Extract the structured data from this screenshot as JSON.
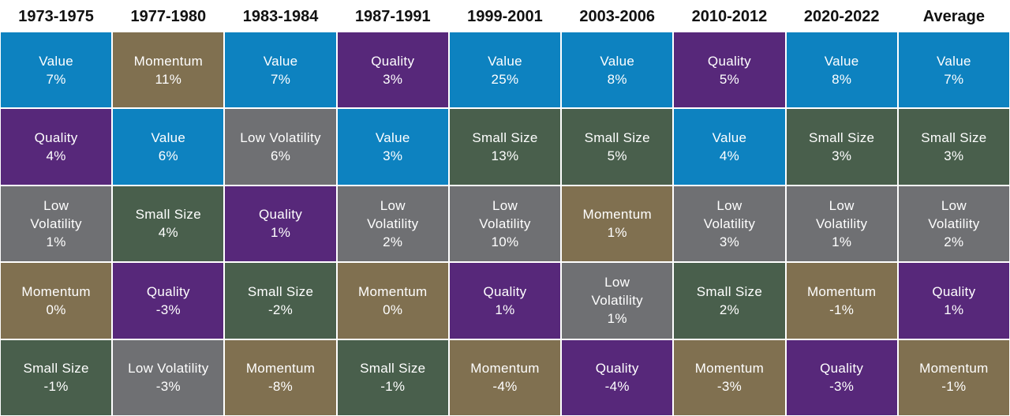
{
  "colors": {
    "Value": "#0d82c0",
    "Momentum": "#807050",
    "Quality": "#57287a",
    "Low Volatility": "#6f7073",
    "Small Size": "#495f4c"
  },
  "chart_data": {
    "type": "table",
    "columns": [
      "1973-1975",
      "1977-1980",
      "1983-1984",
      "1987-1991",
      "1999-2001",
      "2003-2006",
      "2010-2012",
      "2020-2022",
      "Average"
    ],
    "rows": [
      [
        {
          "factor": "Value",
          "value": "7%"
        },
        {
          "factor": "Momentum",
          "value": "11%"
        },
        {
          "factor": "Value",
          "value": "7%"
        },
        {
          "factor": "Quality",
          "value": "3%"
        },
        {
          "factor": "Value",
          "value": "25%"
        },
        {
          "factor": "Value",
          "value": "8%"
        },
        {
          "factor": "Quality",
          "value": "5%"
        },
        {
          "factor": "Value",
          "value": "8%"
        },
        {
          "factor": "Value",
          "value": "7%"
        }
      ],
      [
        {
          "factor": "Quality",
          "value": "4%"
        },
        {
          "factor": "Value",
          "value": "6%"
        },
        {
          "factor": "Low Volatility",
          "value": "6%"
        },
        {
          "factor": "Value",
          "value": "3%"
        },
        {
          "factor": "Small Size",
          "value": "13%"
        },
        {
          "factor": "Small Size",
          "value": "5%"
        },
        {
          "factor": "Value",
          "value": "4%"
        },
        {
          "factor": "Small Size",
          "value": "3%"
        },
        {
          "factor": "Small Size",
          "value": "3%"
        }
      ],
      [
        {
          "factor": "Low Volatility",
          "value": "1%"
        },
        {
          "factor": "Small Size",
          "value": "4%"
        },
        {
          "factor": "Quality",
          "value": "1%"
        },
        {
          "factor": "Low Volatility",
          "value": "2%"
        },
        {
          "factor": "Low Volatility",
          "value": "10%"
        },
        {
          "factor": "Momentum",
          "value": "1%"
        },
        {
          "factor": "Low Volatility",
          "value": "3%"
        },
        {
          "factor": "Low Volatility",
          "value": "1%"
        },
        {
          "factor": "Low Volatility",
          "value": "2%"
        }
      ],
      [
        {
          "factor": "Momentum",
          "value": "0%"
        },
        {
          "factor": "Quality",
          "value": "-3%"
        },
        {
          "factor": "Small Size",
          "value": "-2%"
        },
        {
          "factor": "Momentum",
          "value": "0%"
        },
        {
          "factor": "Quality",
          "value": "1%"
        },
        {
          "factor": "Low Volatility",
          "value": "1%"
        },
        {
          "factor": "Small Size",
          "value": "2%"
        },
        {
          "factor": "Momentum",
          "value": "-1%"
        },
        {
          "factor": "Quality",
          "value": "1%"
        }
      ],
      [
        {
          "factor": "Small Size",
          "value": "-1%"
        },
        {
          "factor": "Low Volatility",
          "value": "-3%"
        },
        {
          "factor": "Momentum",
          "value": "-8%"
        },
        {
          "factor": "Small Size",
          "value": "-1%"
        },
        {
          "factor": "Momentum",
          "value": "-4%"
        },
        {
          "factor": "Quality",
          "value": "-4%"
        },
        {
          "factor": "Momentum",
          "value": "-3%"
        },
        {
          "factor": "Quality",
          "value": "-3%"
        },
        {
          "factor": "Momentum",
          "value": "-1%"
        }
      ]
    ]
  }
}
